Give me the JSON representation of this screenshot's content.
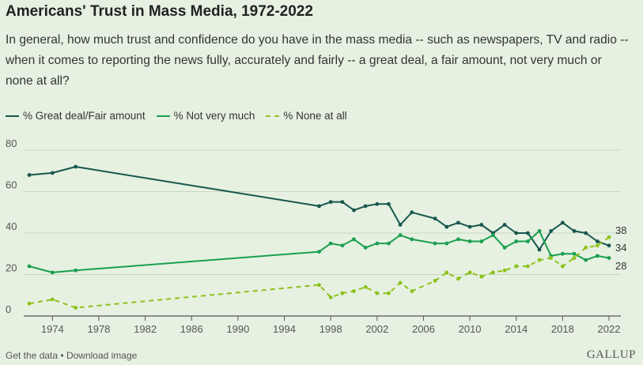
{
  "header": {
    "title": "Americans' Trust in Mass Media, 1972-2022",
    "question": "In general, how much trust and confidence do you have in the mass media -- such as newspapers, TV and radio -- when it comes to reporting the news fully, accurately and fairly -- a great deal, a fair amount, not very much or none at all?"
  },
  "colors": {
    "background": "#e6f1e1",
    "great_deal": "#17574e",
    "not_very_much": "#1a9f4f",
    "none_at_all": "#8cc21a",
    "grid": "#c9d6c4"
  },
  "chart_data": {
    "type": "line",
    "title": "Americans' Trust in Mass Media, 1972-2022",
    "xlabel": "",
    "ylabel": "",
    "xlim": [
      1972,
      2022
    ],
    "ylim": [
      0,
      80
    ],
    "x_ticks": [
      "1974",
      "1978",
      "1982",
      "1986",
      "1990",
      "1994",
      "1998",
      "2002",
      "2006",
      "2010",
      "2014",
      "2018",
      "2022"
    ],
    "y_ticks": [
      "0",
      "20",
      "40",
      "60",
      "80"
    ],
    "grid": true,
    "legend_position": "top-left",
    "series": [
      {
        "name": "% Great deal/Fair amount",
        "style": "solid",
        "color": "#17574e",
        "end_label": "34",
        "points": [
          [
            1972,
            68
          ],
          [
            1974,
            69
          ],
          [
            1976,
            72
          ],
          [
            1997,
            53
          ],
          [
            1998,
            55
          ],
          [
            1999,
            55
          ],
          [
            2000,
            51
          ],
          [
            2001,
            53
          ],
          [
            2002,
            54
          ],
          [
            2003,
            54
          ],
          [
            2004,
            44
          ],
          [
            2005,
            50
          ],
          [
            2007,
            47
          ],
          [
            2008,
            43
          ],
          [
            2009,
            45
          ],
          [
            2010,
            43
          ],
          [
            2011,
            44
          ],
          [
            2012,
            40
          ],
          [
            2013,
            44
          ],
          [
            2014,
            40
          ],
          [
            2015,
            40
          ],
          [
            2016,
            32
          ],
          [
            2017,
            41
          ],
          [
            2018,
            45
          ],
          [
            2019,
            41
          ],
          [
            2020,
            40
          ],
          [
            2021,
            36
          ],
          [
            2022,
            34
          ]
        ]
      },
      {
        "name": "% Not very much",
        "style": "solid",
        "color": "#1a9f4f",
        "end_label": "28",
        "points": [
          [
            1972,
            24
          ],
          [
            1974,
            21
          ],
          [
            1976,
            22
          ],
          [
            1997,
            31
          ],
          [
            1998,
            35
          ],
          [
            1999,
            34
          ],
          [
            2000,
            37
          ],
          [
            2001,
            33
          ],
          [
            2002,
            35
          ],
          [
            2003,
            35
          ],
          [
            2004,
            39
          ],
          [
            2005,
            37
          ],
          [
            2007,
            35
          ],
          [
            2008,
            35
          ],
          [
            2009,
            37
          ],
          [
            2010,
            36
          ],
          [
            2011,
            36
          ],
          [
            2012,
            39
          ],
          [
            2013,
            33
          ],
          [
            2014,
            36
          ],
          [
            2015,
            36
          ],
          [
            2016,
            41
          ],
          [
            2017,
            29
          ],
          [
            2018,
            30
          ],
          [
            2019,
            30
          ],
          [
            2020,
            27
          ],
          [
            2021,
            29
          ],
          [
            2022,
            28
          ]
        ]
      },
      {
        "name": "% None at all",
        "style": "dashed",
        "color": "#8cc21a",
        "end_label": "38",
        "points": [
          [
            1972,
            6
          ],
          [
            1974,
            8
          ],
          [
            1976,
            4
          ],
          [
            1997,
            15
          ],
          [
            1998,
            9
          ],
          [
            1999,
            11
          ],
          [
            2000,
            12
          ],
          [
            2001,
            14
          ],
          [
            2002,
            11
          ],
          [
            2003,
            11
          ],
          [
            2004,
            16
          ],
          [
            2005,
            12
          ],
          [
            2007,
            17
          ],
          [
            2008,
            21
          ],
          [
            2009,
            18
          ],
          [
            2010,
            21
          ],
          [
            2011,
            19
          ],
          [
            2012,
            21
          ],
          [
            2013,
            22
          ],
          [
            2014,
            24
          ],
          [
            2015,
            24
          ],
          [
            2016,
            27
          ],
          [
            2017,
            28
          ],
          [
            2018,
            24
          ],
          [
            2019,
            28
          ],
          [
            2020,
            33
          ],
          [
            2021,
            34
          ],
          [
            2022,
            38
          ]
        ]
      }
    ]
  },
  "footer": {
    "get_data": "Get the data",
    "separator": "•",
    "download": "Download image",
    "logo": "GALLUP"
  }
}
